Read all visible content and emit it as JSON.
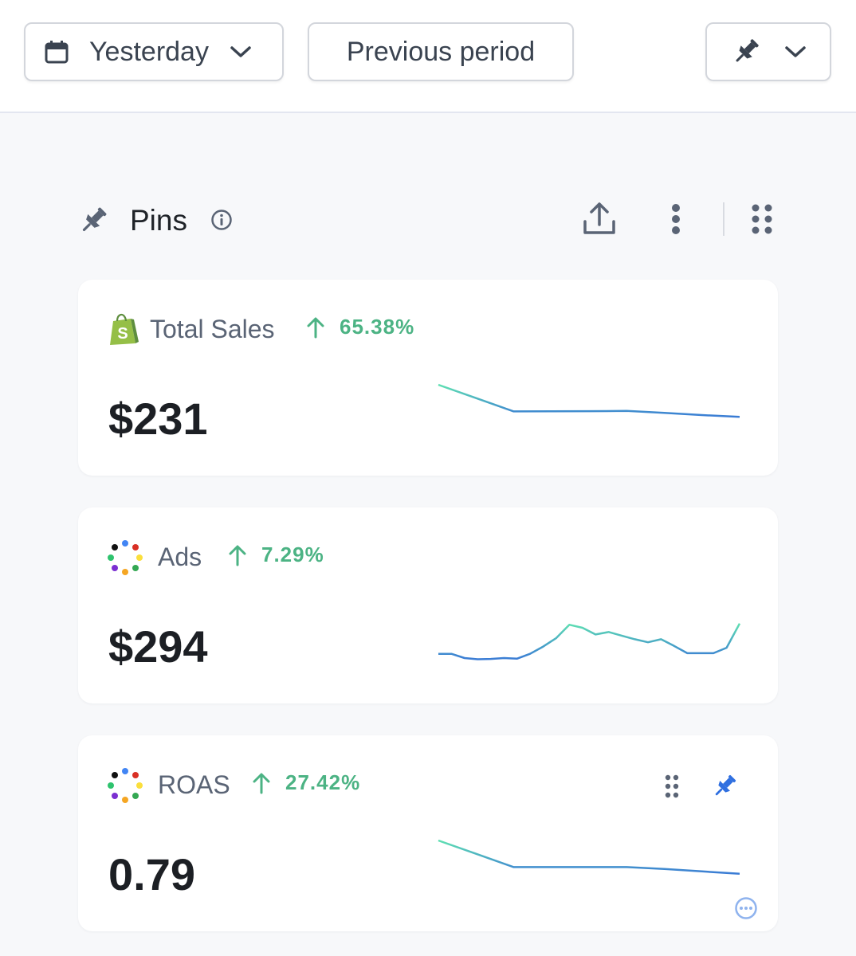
{
  "toolbar": {
    "date_range": "Yesterday",
    "compare": "Previous period",
    "icons": {
      "date": "calendar-icon",
      "pin": "pin-icon",
      "chevron": "chevron-down-icon"
    }
  },
  "section": {
    "title": "Pins",
    "icons": [
      "pin-icon",
      "info-icon",
      "share-icon",
      "more-vertical-icon",
      "grid-dots-icon"
    ]
  },
  "cards": [
    {
      "name": "Total Sales",
      "change": "65.38%",
      "value": "$231",
      "icon": "shopify-icon",
      "trend_direction": "up",
      "sparkline": [
        10,
        7.8,
        5.6,
        5.62,
        5.65,
        5.68,
        5.35,
        5.0,
        4.7
      ]
    },
    {
      "name": "Ads",
      "change": "7.29%",
      "value": "$294",
      "icon": "dots-logo-icon",
      "trend_direction": "up",
      "sparkline": [
        3.2,
        3.2,
        2.5,
        2.3,
        2.35,
        2.5,
        2.4,
        3.2,
        4.4,
        5.8,
        8.0,
        7.5,
        6.4,
        6.8,
        6.2,
        5.6,
        5.1,
        5.6,
        4.5,
        3.3,
        3.3,
        3.3,
        4.2,
        8.2
      ]
    },
    {
      "name": "ROAS",
      "change": "27.42%",
      "value": "0.79",
      "icon": "dots-logo-icon",
      "trend_direction": "up",
      "sparkline": [
        10,
        7.8,
        5.6,
        5.6,
        5.6,
        5.6,
        5.3,
        4.9,
        4.5
      ]
    }
  ],
  "colors": {
    "accent_green": "#4cb384",
    "line_start": "#5fe0b2",
    "line_end": "#3a7bd5",
    "pin_active": "#2f6fe0"
  }
}
